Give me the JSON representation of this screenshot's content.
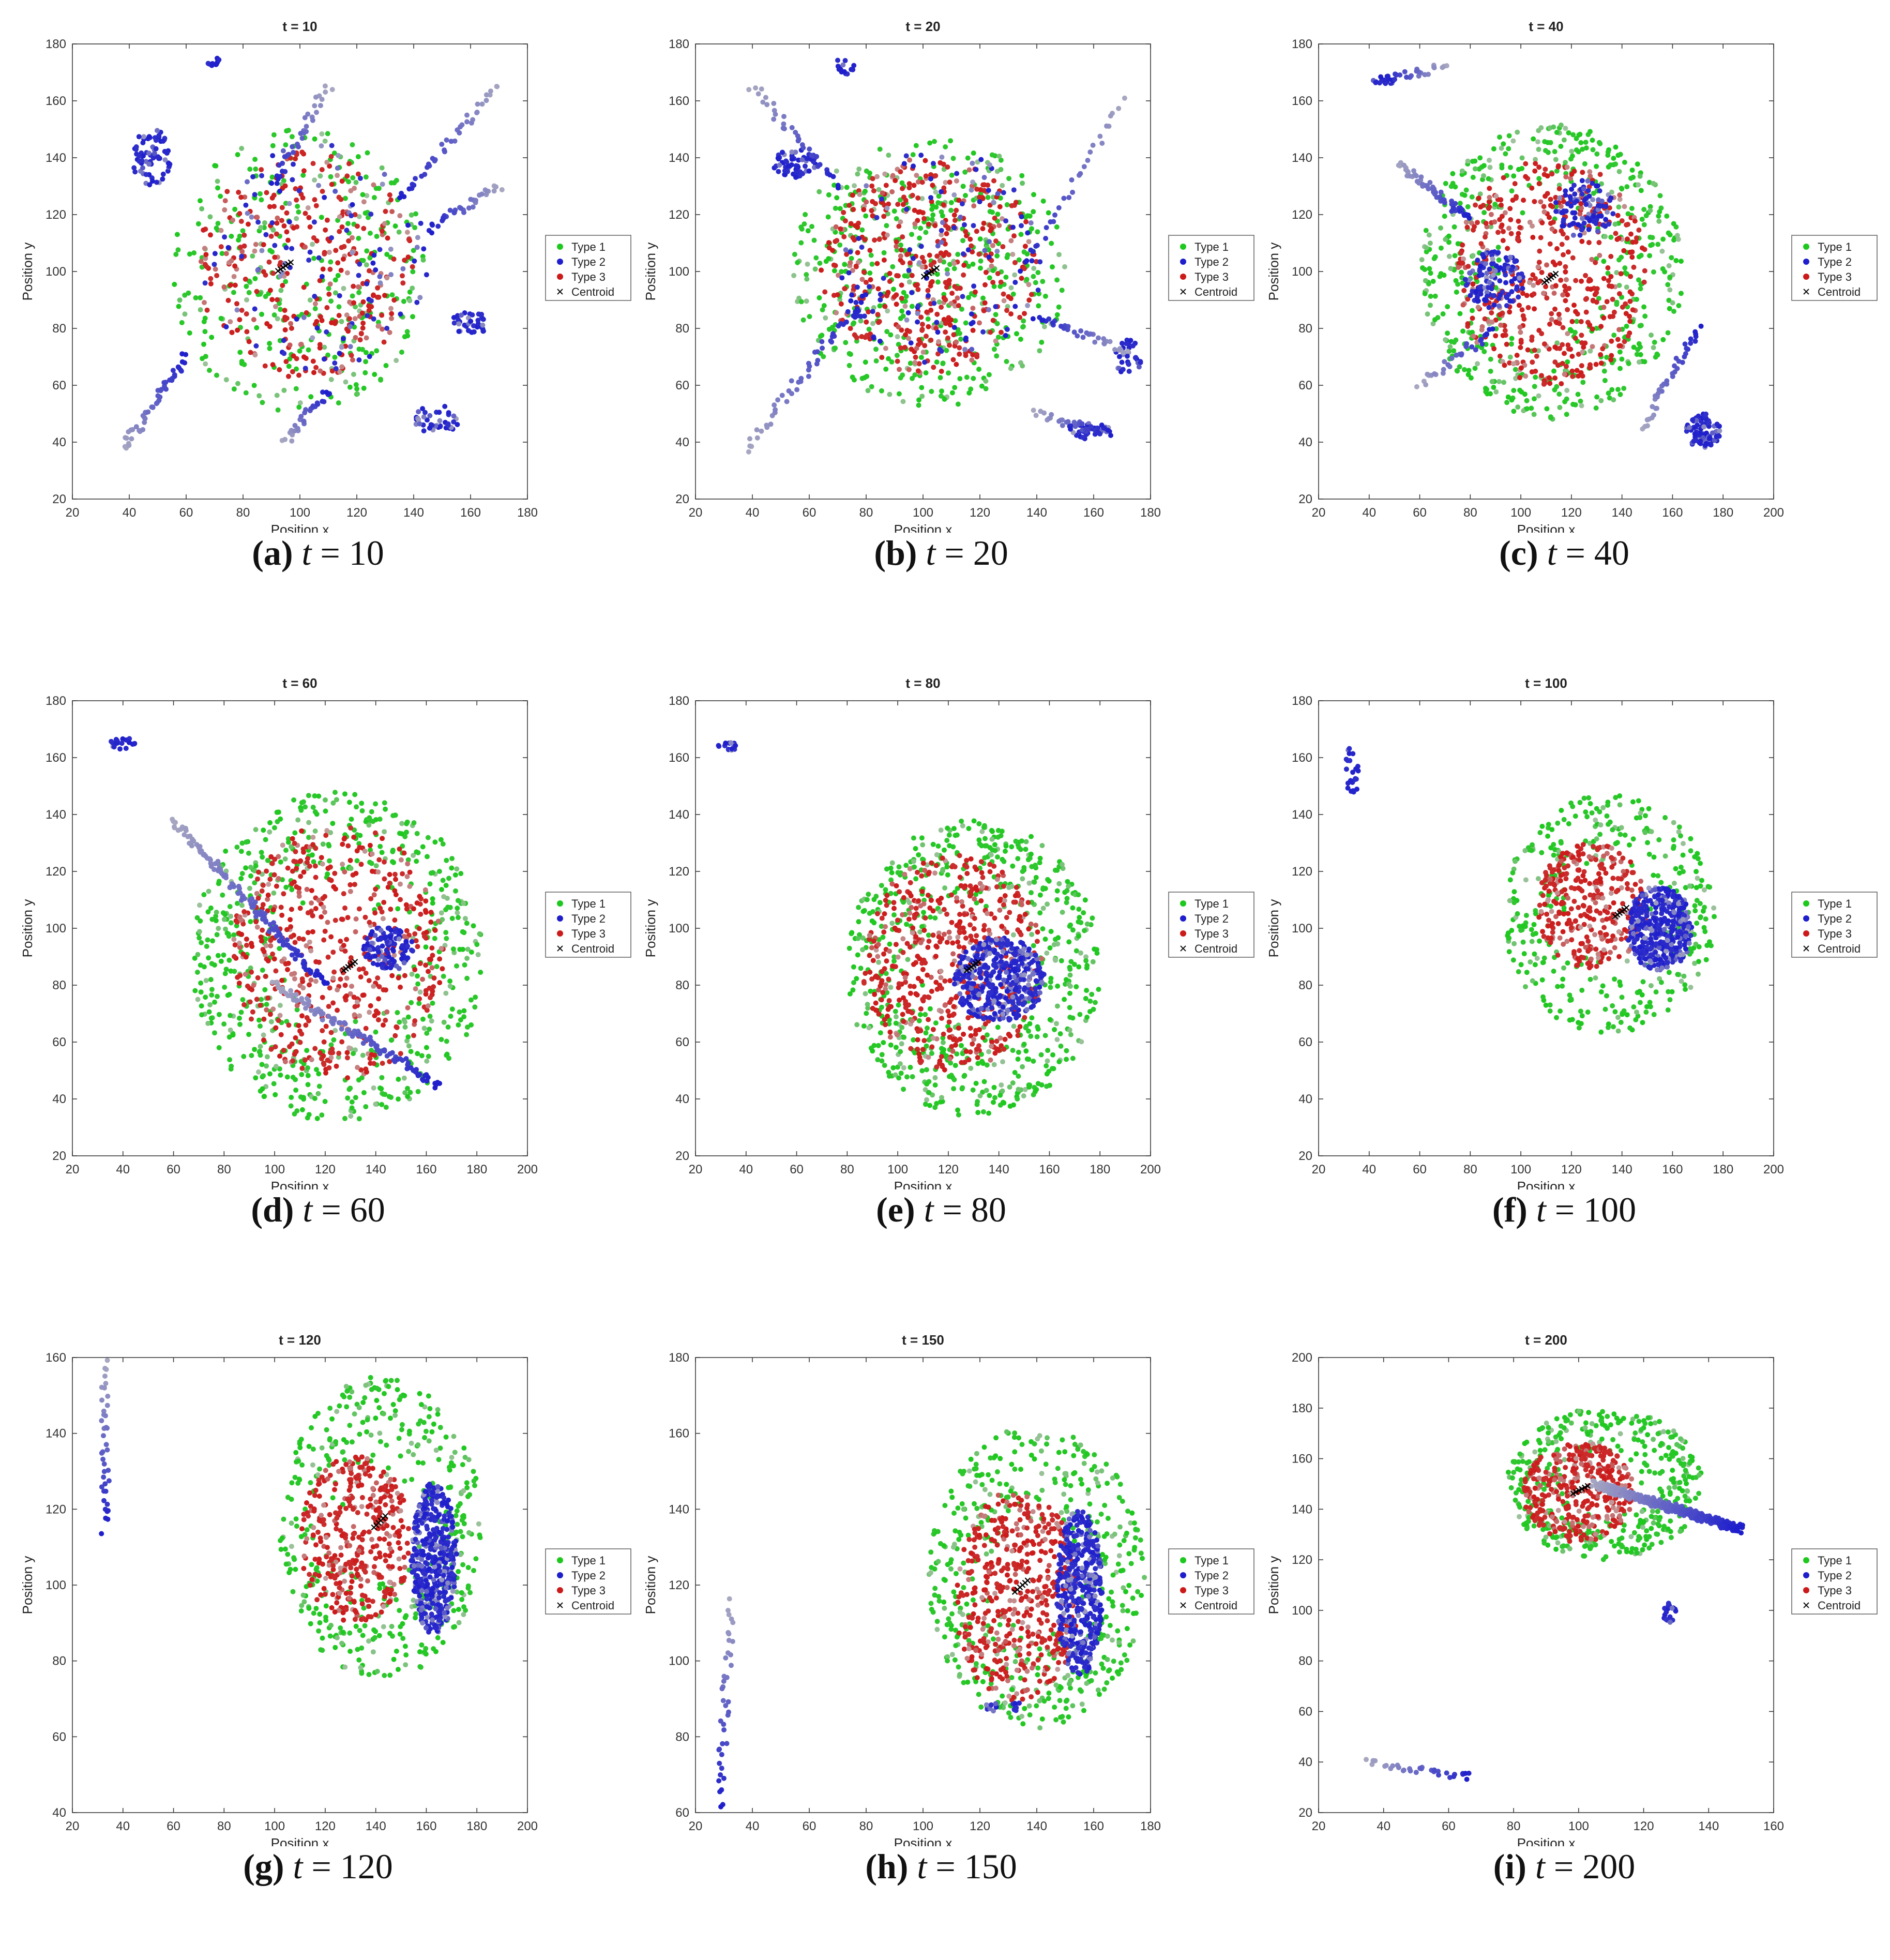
{
  "figure": {
    "colors": {
      "type1": "#1ec81e",
      "type2": "#1e1ecc",
      "type3": "#cc1a1a",
      "centroid": "#000000",
      "fade": "#bfbfbf"
    },
    "legend": [
      "Type 1",
      "Type 2",
      "Type 3",
      "Centroid"
    ]
  },
  "chart_data": [
    {
      "type": "scatter",
      "id": "a",
      "letter": "(a)",
      "t_label": "t",
      "t_value": "10",
      "title": "t = 10",
      "xlabel": "Position x",
      "ylabel": "Position y",
      "xlim": [
        20,
        180
      ],
      "ylim": [
        20,
        180
      ],
      "xticks": [
        20,
        40,
        60,
        80,
        100,
        120,
        140,
        160,
        180
      ],
      "yticks": [
        20,
        40,
        60,
        80,
        100,
        120,
        140,
        160,
        180
      ],
      "centroid": [
        95,
        102
      ],
      "series": [
        {
          "name": "Type 1",
          "blobs": [
            {
              "cx": 100,
              "cy": 100,
              "rx": 45,
              "ry": 50,
              "n": 320,
              "mode": "fill"
            }
          ]
        },
        {
          "name": "Type 3",
          "blobs": [
            {
              "cx": 102,
              "cy": 102,
              "rx": 38,
              "ry": 40,
              "n": 320,
              "mode": "fill"
            }
          ]
        },
        {
          "name": "Type 2",
          "blobs": [
            {
              "cx": 105,
              "cy": 105,
              "rx": 40,
              "ry": 40,
              "n": 110,
              "mode": "fill"
            },
            {
              "cx": 48,
              "cy": 140,
              "rx": 7,
              "ry": 10,
              "n": 70,
              "mode": "fill"
            },
            {
              "cx": 160,
              "cy": 82,
              "rx": 7,
              "ry": 4,
              "n": 35,
              "mode": "fill"
            },
            {
              "cx": 148,
              "cy": 48,
              "rx": 8,
              "ry": 5,
              "n": 40,
              "mode": "fill"
            },
            {
              "cx": 70,
              "cy": 174,
              "rx": 3,
              "ry": 2,
              "n": 10,
              "mode": "fill"
            }
          ],
          "trails": [
            [
              38,
              38,
              60,
              70,
              50
            ],
            [
              170,
              165,
              135,
              125,
              40
            ],
            [
              170,
              130,
              145,
              115,
              35
            ],
            [
              95,
              40,
              110,
              58,
              30
            ],
            [
              110,
              165,
              90,
              130,
              35
            ]
          ]
        }
      ]
    },
    {
      "type": "scatter",
      "id": "b",
      "letter": "(b)",
      "t_label": "t",
      "t_value": "20",
      "title": "t = 20",
      "xlabel": "Position x",
      "ylabel": "Position y",
      "xlim": [
        20,
        180
      ],
      "ylim": [
        20,
        180
      ],
      "xticks": [
        20,
        40,
        60,
        80,
        100,
        120,
        140,
        160,
        180
      ],
      "yticks": [
        20,
        40,
        60,
        80,
        100,
        120,
        140,
        160,
        180
      ],
      "centroid": [
        103,
        100
      ],
      "series": [
        {
          "name": "Type 1",
          "blobs": [
            {
              "cx": 102,
              "cy": 100,
              "rx": 48,
              "ry": 48,
              "n": 480,
              "mode": "fill"
            }
          ]
        },
        {
          "name": "Type 3",
          "blobs": [
            {
              "cx": 102,
              "cy": 102,
              "rx": 38,
              "ry": 38,
              "n": 420,
              "mode": "fill"
            }
          ]
        },
        {
          "name": "Type 2",
          "blobs": [
            {
              "cx": 105,
              "cy": 105,
              "rx": 38,
              "ry": 38,
              "n": 120,
              "mode": "fill"
            },
            {
              "cx": 55,
              "cy": 138,
              "rx": 8,
              "ry": 5,
              "n": 60,
              "mode": "fill"
            },
            {
              "cx": 172,
              "cy": 70,
              "rx": 5,
              "ry": 6,
              "n": 30,
              "mode": "fill"
            },
            {
              "cx": 158,
              "cy": 44,
              "rx": 8,
              "ry": 3,
              "n": 45,
              "mode": "fill"
            },
            {
              "cx": 72,
              "cy": 172,
              "rx": 4,
              "ry": 3,
              "n": 14,
              "mode": "fill"
            }
          ],
          "trails": [
            [
              38,
              38,
              78,
              90,
              50
            ],
            [
              172,
              72,
              140,
              84,
              35
            ],
            [
              140,
              50,
              165,
              43,
              30
            ],
            [
              40,
              165,
              70,
              130,
              35
            ],
            [
              170,
              160,
              135,
              100,
              30
            ]
          ]
        }
      ]
    },
    {
      "type": "scatter",
      "id": "c",
      "letter": "(c)",
      "t_label": "t",
      "t_value": "40",
      "title": "t = 40",
      "xlabel": "Position x",
      "ylabel": "Position y",
      "xlim": [
        20,
        200
      ],
      "ylim": [
        20,
        180
      ],
      "xticks": [
        20,
        40,
        60,
        80,
        100,
        120,
        140,
        160,
        180,
        200
      ],
      "yticks": [
        20,
        40,
        60,
        80,
        100,
        120,
        140,
        160,
        180
      ],
      "centroid": [
        112,
        98
      ],
      "series": [
        {
          "name": "Type 1",
          "blobs": [
            {
              "cx": 112,
              "cy": 100,
              "rx": 52,
              "ry": 52,
              "n": 520,
              "mode": "ring"
            }
          ]
        },
        {
          "name": "Type 3",
          "blobs": [
            {
              "cx": 112,
              "cy": 100,
              "rx": 38,
              "ry": 40,
              "n": 480,
              "mode": "fill"
            }
          ]
        },
        {
          "name": "Type 2",
          "blobs": [
            {
              "cx": 90,
              "cy": 97,
              "rx": 12,
              "ry": 10,
              "n": 120,
              "mode": "fill"
            },
            {
              "cx": 125,
              "cy": 122,
              "rx": 12,
              "ry": 10,
              "n": 90,
              "mode": "fill"
            },
            {
              "cx": 172,
              "cy": 44,
              "rx": 7,
              "ry": 6,
              "n": 90,
              "mode": "fill"
            },
            {
              "cx": 46,
              "cy": 167,
              "rx": 5,
              "ry": 1,
              "n": 15,
              "mode": "fill"
            }
          ],
          "trails": [
            [
              52,
              138,
              80,
              118,
              60
            ],
            [
              148,
              45,
              170,
              80,
              40
            ],
            [
              70,
              172,
              45,
              167,
              25
            ],
            [
              60,
              60,
              90,
              80,
              30
            ]
          ]
        }
      ]
    },
    {
      "type": "scatter",
      "id": "d",
      "letter": "(d)",
      "t_label": "t",
      "t_value": "60",
      "title": "t = 60",
      "xlabel": "Position x",
      "ylabel": "Position y",
      "xlim": [
        20,
        200
      ],
      "ylim": [
        20,
        180
      ],
      "xticks": [
        20,
        40,
        60,
        80,
        100,
        120,
        140,
        160,
        180,
        200
      ],
      "yticks": [
        20,
        40,
        60,
        80,
        100,
        120,
        140,
        160,
        180
      ],
      "centroid": [
        130,
        87
      ],
      "series": [
        {
          "name": "Type 1",
          "blobs": [
            {
              "cx": 125,
              "cy": 90,
              "rx": 58,
              "ry": 58,
              "n": 600,
              "mode": "ring"
            }
          ]
        },
        {
          "name": "Type 3",
          "blobs": [
            {
              "cx": 125,
              "cy": 92,
              "rx": 42,
              "ry": 45,
              "n": 520,
              "mode": "fill"
            }
          ]
        },
        {
          "name": "Type 2",
          "blobs": [
            {
              "cx": 145,
              "cy": 93,
              "rx": 10,
              "ry": 8,
              "n": 110,
              "mode": "fill"
            },
            {
              "cx": 40,
              "cy": 165,
              "rx": 5,
              "ry": 2,
              "n": 20,
              "mode": "fill"
            }
          ],
          "trails": [
            [
              60,
              138,
              120,
              80,
              130
            ],
            [
              100,
              80,
              165,
              45,
              110
            ]
          ]
        }
      ]
    },
    {
      "type": "scatter",
      "id": "e",
      "letter": "(e)",
      "t_label": "t",
      "t_value": "80",
      "title": "t = 80",
      "xlabel": "Position x",
      "ylabel": "Position y",
      "xlim": [
        20,
        200
      ],
      "ylim": [
        20,
        180
      ],
      "xticks": [
        20,
        40,
        60,
        80,
        100,
        120,
        140,
        160,
        180,
        200
      ],
      "yticks": [
        20,
        40,
        60,
        80,
        100,
        120,
        140,
        160,
        180
      ],
      "centroid": [
        130,
        87
      ],
      "series": [
        {
          "name": "Type 1",
          "blobs": [
            {
              "cx": 130,
              "cy": 86,
              "rx": 50,
              "ry": 52,
              "n": 620,
              "mode": "ring"
            }
          ]
        },
        {
          "name": "Type 3",
          "blobs": [
            {
              "cx": 122,
              "cy": 88,
              "rx": 36,
              "ry": 38,
              "n": 520,
              "mode": "fill"
            }
          ]
        },
        {
          "name": "Type 2",
          "blobs": [
            {
              "cx": 140,
              "cy": 82,
              "rx": 18,
              "ry": 15,
              "n": 420,
              "mode": "fill"
            },
            {
              "cx": 33,
              "cy": 164,
              "rx": 4,
              "ry": 1.5,
              "n": 16,
              "mode": "fill"
            }
          ],
          "trails": []
        }
      ]
    },
    {
      "type": "scatter",
      "id": "f",
      "letter": "(f)",
      "t_label": "t",
      "t_value": "100",
      "title": "t = 100",
      "xlabel": "Position x",
      "ylabel": "Position y",
      "xlim": [
        20,
        200
      ],
      "ylim": [
        20,
        180
      ],
      "xticks": [
        20,
        40,
        60,
        80,
        100,
        120,
        140,
        160,
        180,
        200
      ],
      "yticks": [
        20,
        40,
        60,
        80,
        100,
        120,
        140,
        160,
        180
      ],
      "centroid": [
        140,
        106
      ],
      "series": [
        {
          "name": "Type 1",
          "blobs": [
            {
              "cx": 135,
              "cy": 105,
              "rx": 42,
              "ry": 42,
              "n": 360,
              "mode": "ring"
            }
          ]
        },
        {
          "name": "Type 3",
          "blobs": [
            {
              "cx": 128,
              "cy": 108,
              "rx": 22,
              "ry": 22,
              "n": 320,
              "mode": "fill"
            }
          ]
        },
        {
          "name": "Type 2",
          "blobs": [
            {
              "cx": 155,
              "cy": 100,
              "rx": 13,
              "ry": 15,
              "n": 420,
              "mode": "fill"
            },
            {
              "cx": 33,
              "cy": 155,
              "rx": 3,
              "ry": 9,
              "n": 24,
              "mode": "fill"
            }
          ],
          "trails": []
        }
      ]
    },
    {
      "type": "scatter",
      "id": "g",
      "letter": "(g)",
      "t_label": "t",
      "t_value": "120",
      "title": "t = 120",
      "xlabel": "Position x",
      "ylabel": "Position y",
      "xlim": [
        20,
        200
      ],
      "ylim": [
        40,
        160
      ],
      "xticks": [
        20,
        40,
        60,
        80,
        100,
        120,
        140,
        160,
        180,
        200
      ],
      "yticks": [
        40,
        60,
        80,
        100,
        120,
        140,
        160
      ],
      "centroid": [
        142,
        117
      ],
      "series": [
        {
          "name": "Type 1",
          "blobs": [
            {
              "cx": 142,
              "cy": 115,
              "rx": 40,
              "ry": 40,
              "n": 420,
              "mode": "ring"
            }
          ]
        },
        {
          "name": "Type 3",
          "blobs": [
            {
              "cx": 132,
              "cy": 112,
              "rx": 22,
              "ry": 22,
              "n": 380,
              "mode": "fill"
            }
          ]
        },
        {
          "name": "Type 2",
          "blobs": [
            {
              "cx": 163,
              "cy": 107,
              "rx": 9,
              "ry": 20,
              "n": 460,
              "mode": "fill"
            }
          ],
          "trails": [
            [
              33,
              158,
              33,
              115,
              40
            ]
          ]
        }
      ]
    },
    {
      "type": "scatter",
      "id": "h",
      "letter": "(h)",
      "t_label": "t",
      "t_value": "150",
      "title": "t = 150",
      "xlabel": "Position x",
      "ylabel": "Position y",
      "xlim": [
        20,
        180
      ],
      "ylim": [
        60,
        180
      ],
      "xticks": [
        20,
        40,
        60,
        80,
        100,
        120,
        140,
        160,
        180
      ],
      "yticks": [
        60,
        80,
        100,
        120,
        140,
        160,
        180
      ],
      "centroid": [
        135,
        120
      ],
      "series": [
        {
          "name": "Type 1",
          "blobs": [
            {
              "cx": 140,
              "cy": 122,
              "rx": 38,
              "ry": 40,
              "n": 480,
              "mode": "ring"
            }
          ]
        },
        {
          "name": "Type 3",
          "blobs": [
            {
              "cx": 133,
              "cy": 117,
              "rx": 22,
              "ry": 28,
              "n": 480,
              "mode": "fill"
            }
          ]
        },
        {
          "name": "Type 2",
          "blobs": [
            {
              "cx": 155,
              "cy": 118,
              "rx": 8,
              "ry": 22,
              "n": 420,
              "mode": "fill"
            },
            {
              "cx": 124,
              "cy": 88,
              "rx": 2,
              "ry": 1.5,
              "n": 10,
              "mode": "fill"
            },
            {
              "cx": 133,
              "cy": 88,
              "rx": 1.5,
              "ry": 1.5,
              "n": 8,
              "mode": "fill"
            }
          ],
          "trails": [
            [
              33,
              115,
              28,
              62,
              40
            ]
          ]
        }
      ]
    },
    {
      "type": "scatter",
      "id": "i",
      "letter": "(i)",
      "t_label": "t",
      "t_value": "200",
      "title": "t = 200",
      "xlabel": "Position x",
      "ylabel": "Position y",
      "xlim": [
        20,
        160
      ],
      "ylim": [
        20,
        200
      ],
      "xticks": [
        20,
        40,
        60,
        80,
        100,
        120,
        140,
        160
      ],
      "yticks": [
        20,
        40,
        60,
        80,
        100,
        120,
        140,
        160,
        180,
        200
      ],
      "centroid": [
        101,
        148
      ],
      "series": [
        {
          "name": "Type 1",
          "blobs": [
            {
              "cx": 108,
              "cy": 150,
              "rx": 30,
              "ry": 30,
              "n": 420,
              "mode": "ring"
            }
          ]
        },
        {
          "name": "Type 3",
          "blobs": [
            {
              "cx": 100,
              "cy": 147,
              "rx": 17,
              "ry": 20,
              "n": 380,
              "mode": "fill"
            }
          ]
        },
        {
          "name": "Type 2",
          "blobs": [
            {
              "cx": 128,
              "cy": 99,
              "rx": 2,
              "ry": 4,
              "n": 18,
              "mode": "fill"
            }
          ],
          "trails": [
            [
              105,
              150,
              150,
              132,
              380
            ],
            [
              35,
              40,
              67,
              34,
              32
            ]
          ]
        }
      ]
    }
  ]
}
